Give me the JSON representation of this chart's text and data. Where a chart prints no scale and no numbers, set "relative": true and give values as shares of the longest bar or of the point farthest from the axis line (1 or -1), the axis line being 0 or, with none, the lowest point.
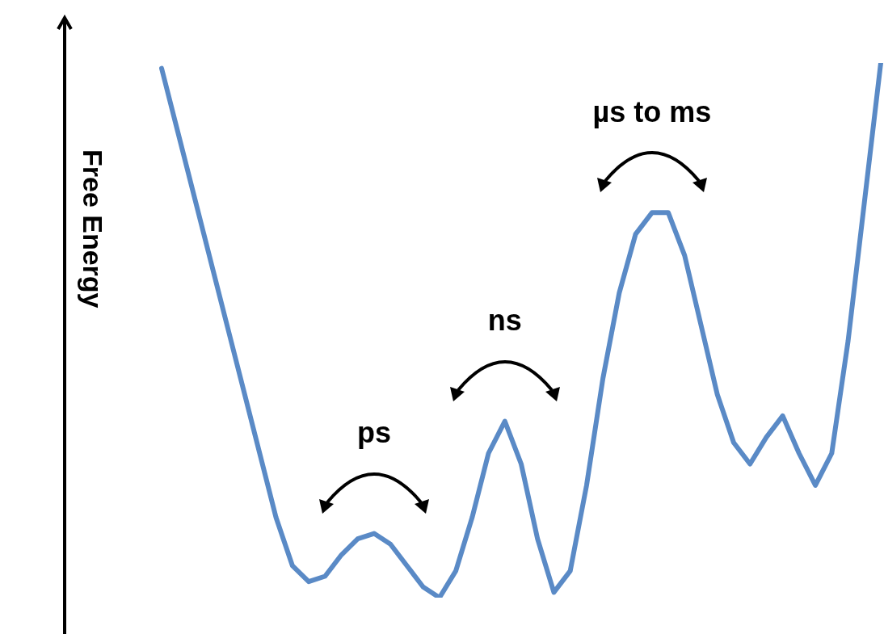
{
  "chart_data": {
    "type": "line",
    "relative": true,
    "ylabel": "Free Energy",
    "categories": [
      null,
      null,
      null,
      null,
      null,
      null,
      null,
      null,
      null,
      null,
      null,
      null,
      null,
      null,
      null,
      null,
      null,
      null,
      null,
      null,
      null,
      null,
      null,
      null,
      null,
      null,
      null,
      null,
      null,
      null,
      null,
      null,
      null,
      null,
      null,
      null,
      null,
      null,
      null,
      null,
      null,
      null,
      null,
      null,
      null
    ],
    "series": [
      {
        "color": "#5a8ac6",
        "values": [
          0.99,
          0.87,
          0.75,
          0.63,
          0.51,
          0.39,
          0.27,
          0.15,
          0.06,
          0.03,
          0.04,
          0.08,
          0.11,
          0.12,
          0.1,
          0.06,
          0.02,
          0,
          0.05,
          0.15,
          0.27,
          0.33,
          0.25,
          0.11,
          0.01,
          0.05,
          0.21,
          0.41,
          0.57,
          0.68,
          0.72,
          0.72,
          0.64,
          0.51,
          0.38,
          0.29,
          0.25,
          0.3,
          0.34,
          0.27,
          0.21,
          0.27,
          0.48,
          0.74,
          1
        ]
      }
    ],
    "annotations": [
      "ps",
      "ns",
      "µs to ms"
    ]
  }
}
